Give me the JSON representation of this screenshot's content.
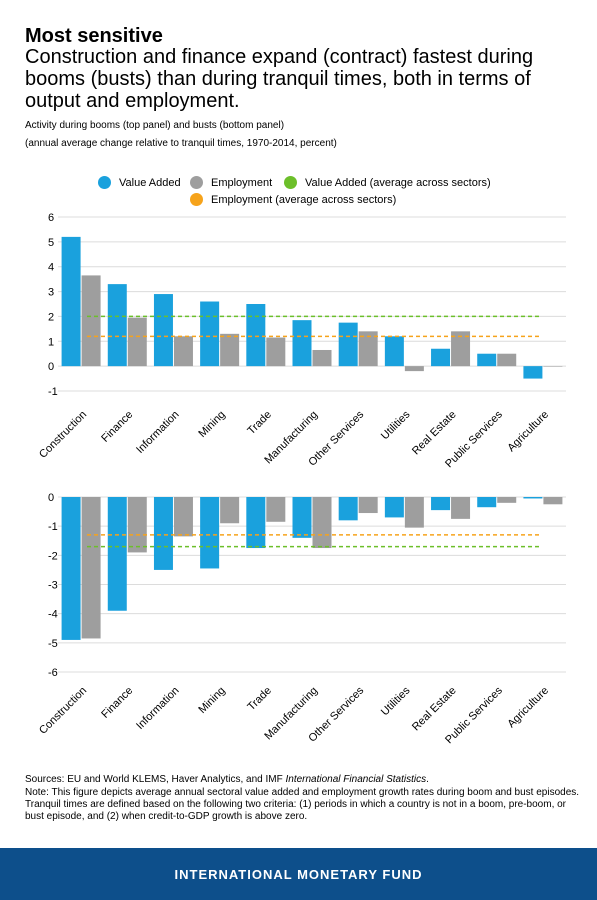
{
  "title": "Most sensitive",
  "subtitle": "Construction and finance expand (contract) fastest during booms (busts) than during tranquil times, both in terms of output and employment.",
  "description_line1": "Activity during booms (top panel) and busts (bottom panel)",
  "description_line2": "(annual average change relative to tranquil times, 1970-2014, percent)",
  "legend": {
    "value_added": "Value Added",
    "employment": "Employment",
    "va_avg": "Value Added (average across sectors)",
    "emp_avg": "Employment (average across sectors)"
  },
  "colors": {
    "value_added": "#1aa1dd",
    "employment": "#9e9e9e",
    "va_avg": "#6cbf2a",
    "emp_avg": "#f6a31b",
    "banner": "#0d4f8b"
  },
  "chart_data": [
    {
      "type": "bar",
      "panel": "booms",
      "categories": [
        "Construction",
        "Finance",
        "Information",
        "Mining",
        "Trade",
        "Manufacturing",
        "Other Services",
        "Utilities",
        "Real Estate",
        "Public Services",
        "Agriculture"
      ],
      "series": [
        {
          "name": "Value Added",
          "values": [
            5.2,
            3.3,
            2.9,
            2.6,
            2.5,
            1.85,
            1.75,
            1.2,
            0.7,
            0.5,
            -0.5
          ]
        },
        {
          "name": "Employment",
          "values": [
            3.65,
            1.95,
            1.2,
            1.3,
            1.15,
            0.65,
            1.4,
            -0.2,
            1.4,
            0.5,
            0.0
          ]
        }
      ],
      "reference_lines": [
        {
          "name": "Value Added (average across sectors)",
          "value": 2.0
        },
        {
          "name": "Employment (average across sectors)",
          "value": 1.2
        }
      ],
      "yticks": [
        -1,
        0,
        1,
        2,
        3,
        4,
        5,
        6
      ],
      "ylim": [
        -1,
        6
      ],
      "grid": true
    },
    {
      "type": "bar",
      "panel": "busts",
      "categories": [
        "Construction",
        "Finance",
        "Information",
        "Mining",
        "Trade",
        "Manufacturing",
        "Other Services",
        "Utilities",
        "Real Estate",
        "Public Services",
        "Agriculture"
      ],
      "series": [
        {
          "name": "Value Added",
          "values": [
            -4.9,
            -3.9,
            -2.5,
            -2.45,
            -1.75,
            -1.4,
            -0.8,
            -0.7,
            -0.45,
            -0.35,
            -0.05
          ]
        },
        {
          "name": "Employment",
          "values": [
            -4.85,
            -1.9,
            -1.35,
            -0.9,
            -0.85,
            -1.75,
            -0.55,
            -1.05,
            -0.75,
            -0.2,
            -0.25
          ]
        }
      ],
      "reference_lines": [
        {
          "name": "Value Added (average across sectors)",
          "value": -1.7
        },
        {
          "name": "Employment (average across sectors)",
          "value": -1.3
        }
      ],
      "yticks": [
        -6,
        -5,
        -4,
        -3,
        -2,
        -1,
        0
      ],
      "ylim": [
        -6,
        0
      ],
      "grid": true
    }
  ],
  "sources_prefix": "Sources: EU and World KLEMS, Haver Analytics, and IMF ",
  "sources_italic": "International Financial Statistics",
  "sources_suffix": ".",
  "note": "Note: This figure depicts average annual sectoral value added and employment growth rates during boom and bust episodes. Tranquil times are defined based on the following two criteria: (1) periods in which a country is not in a boom, pre-boom, or bust episode, and (2) when credit-to-GDP growth is above zero.",
  "banner_text": "INTERNATIONAL MONETARY FUND"
}
